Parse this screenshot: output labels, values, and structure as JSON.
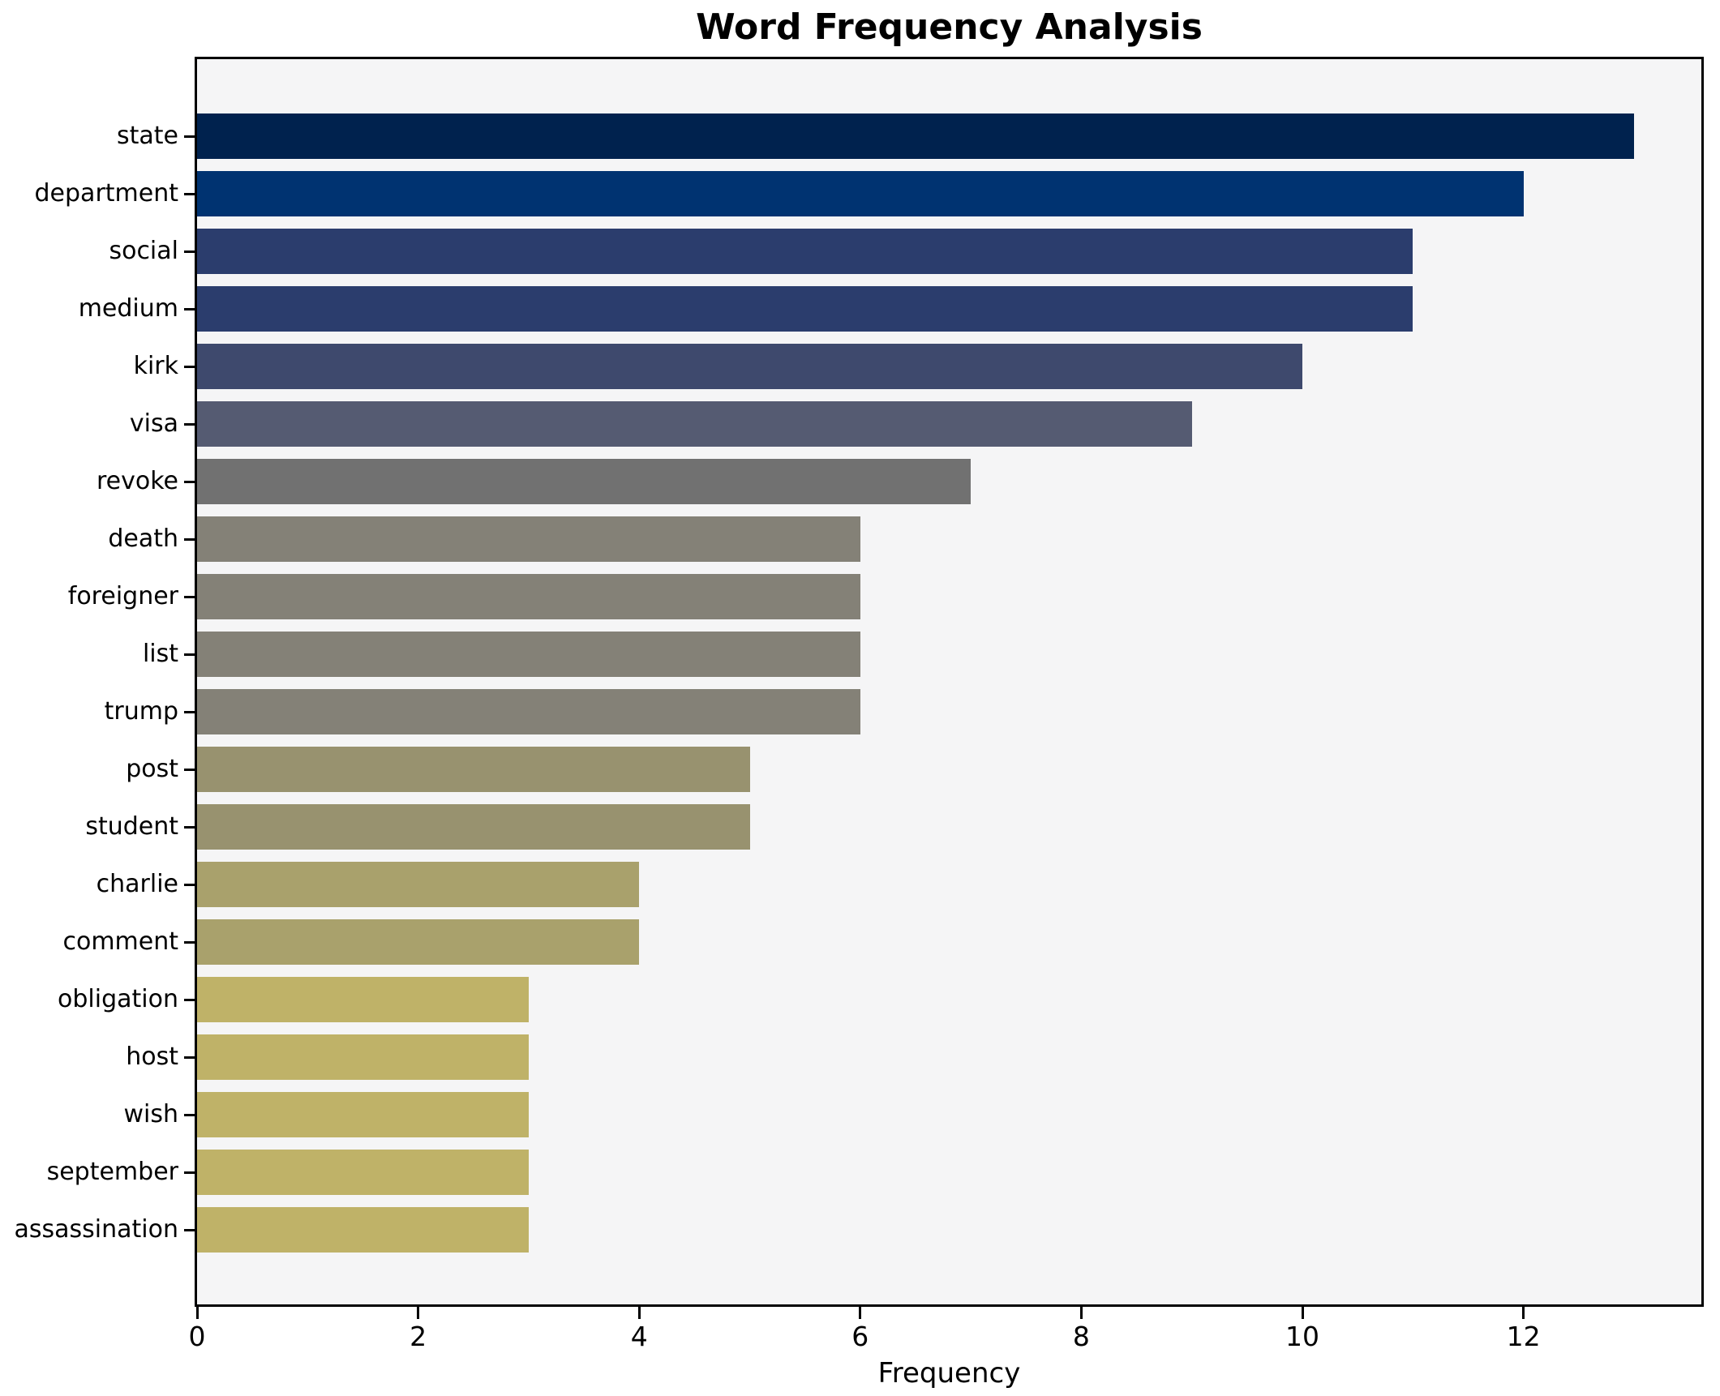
{
  "chart_data": {
    "type": "bar",
    "orientation": "horizontal",
    "title": "Word Frequency Analysis",
    "xlabel": "Frequency",
    "ylabel": "",
    "categories": [
      "state",
      "department",
      "social",
      "medium",
      "kirk",
      "visa",
      "revoke",
      "death",
      "foreigner",
      "list",
      "trump",
      "post",
      "student",
      "charlie",
      "comment",
      "obligation",
      "host",
      "wish",
      "september",
      "assassination"
    ],
    "values": [
      13,
      12,
      11,
      11,
      10,
      9,
      7,
      6,
      6,
      6,
      6,
      5,
      5,
      4,
      4,
      3,
      3,
      3,
      3,
      3
    ],
    "bar_colors": [
      "#00224e",
      "#003371",
      "#2b3d6d",
      "#2b3d6d",
      "#3e496d",
      "#555b72",
      "#717171",
      "#848177",
      "#848177",
      "#848177",
      "#848177",
      "#98926f",
      "#98926f",
      "#a9a16c",
      "#a9a16c",
      "#bfb268",
      "#bfb268",
      "#bfb268",
      "#bfb268",
      "#bfb268"
    ],
    "xticks": [
      0,
      2,
      4,
      6,
      8,
      10,
      12
    ],
    "xlim": [
      0,
      13.6
    ],
    "grid": false,
    "legend_position": "none",
    "plot_background": "#f5f5f6",
    "figure_background": "#ffffff",
    "spine_color": "#000000"
  }
}
